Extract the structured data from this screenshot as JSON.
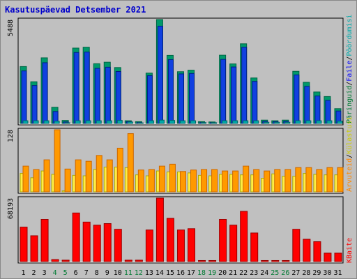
{
  "title": "Kasutuspäevad Detsember 2021",
  "colors": {
    "hits_top": "#00996a",
    "hits": "#1040e0",
    "files_top": "#00aaaa",
    "files": "#40b0ff",
    "pages": "#ff9900",
    "pages_top": "#cc6600",
    "visits": "#ffee44",
    "visits_top": "#aaaa00",
    "sites": "#ff8800",
    "kbytes": "#ff0000",
    "kbytes_top": "#990000",
    "weekend_label": "#007a33",
    "weekday_label": "#000000",
    "legend_hits": "#007a33",
    "legend_files": "#0000ff",
    "legend_pages": "#00aaaa",
    "legend_visits": "#cccc00",
    "legend_sites": "#ff8800",
    "legend_kbytes": "#ff0000"
  },
  "chart_data": {
    "type": "bar",
    "title": "Kasutuspäevad Detsember 2021",
    "x": [
      "1",
      "2",
      "3",
      "4",
      "5",
      "6",
      "7",
      "8",
      "9",
      "10",
      "11",
      "12",
      "13",
      "14",
      "15",
      "16",
      "17",
      "18",
      "19",
      "20",
      "21",
      "22",
      "23",
      "24",
      "25",
      "26",
      "27",
      "28",
      "29",
      "30",
      "31"
    ],
    "weekend_days": [
      "4",
      "5",
      "11",
      "12",
      "18",
      "19",
      "25",
      "26"
    ],
    "panels": [
      {
        "key": "hits_files",
        "max_label": "5488",
        "ymax": 5488,
        "legend": [
          "Päringuid",
          "/",
          "Faile",
          "/",
          "Pöördumisi"
        ],
        "series": [
          {
            "name": "Päringuid",
            "values": [
              3006,
              2203,
              3465,
              856,
              160,
              3980,
              4027,
              3156,
              3235,
              2953,
              144,
              96,
              2659,
              5488,
              3595,
              2734,
              2814,
              96,
              80,
              3605,
              3145,
              4207,
              2403,
              176,
              144,
              176,
              2754,
              2173,
              1662,
              1422,
              781
            ]
          },
          {
            "name": "Faile",
            "values": [
              2774,
              2002,
              3206,
              632,
              80,
              3747,
              3771,
              2910,
              2970,
              2744,
              96,
              48,
              2525,
              5135,
              3370,
              2617,
              2640,
              48,
              40,
              3383,
              2982,
              4026,
              2221,
              112,
              96,
              112,
              2565,
              1959,
              1450,
              1218,
              657
            ]
          },
          {
            "name": "Pöördumisi",
            "values": [
              144,
              144,
              144,
              120,
              40,
              144,
              144,
              144,
              144,
              160,
              80,
              32,
              144,
              176,
              160,
              144,
              144,
              48,
              40,
              144,
              144,
              144,
              144,
              64,
              64,
              64,
              144,
              144,
              144,
              144,
              120
            ]
          }
        ]
      },
      {
        "key": "pages_visits",
        "max_label": "128",
        "ymax": 128,
        "legend": [
          "Arvuteid",
          "/",
          "Külastusi"
        ],
        "series": [
          {
            "name": "Arvuteid",
            "values": [
              53,
              46,
              66,
              128,
              47,
              66,
              63,
              75,
              66,
              90,
              120,
              45,
              46,
              53,
              57,
              42,
              45,
              46,
              46,
              43,
              43,
              53,
              46,
              43,
              46,
              46,
              50,
              50,
              46,
              50,
              50
            ]
          },
          {
            "name": "Külastusi",
            "values": [
              38,
              29,
              43,
              36,
              2,
              34,
              33,
              46,
              51,
              51,
              50,
              35,
              33,
              43,
              41,
              41,
              39,
              34,
              33,
              36,
              36,
              35,
              35,
              28,
              37,
              32,
              32,
              38,
              36,
              35,
              35
            ]
          }
        ]
      },
      {
        "key": "kbytes",
        "max_label": "68193",
        "ymax": 68193,
        "legend": [
          "KBaite"
        ],
        "series": [
          {
            "name": "KBaite",
            "values": [
              37020,
              27750,
              45340,
              2160,
              1510,
              52200,
              42450,
              39120,
              40810,
              34690,
              1510,
              1510,
              33940,
              68193,
              46420,
              33940,
              35360,
              1140,
              1140,
              45340,
              39120,
              53950,
              30720,
              1140,
              1140,
              1140,
              34690,
              23960,
              21380,
              9060,
              9060
            ]
          }
        ]
      }
    ]
  }
}
